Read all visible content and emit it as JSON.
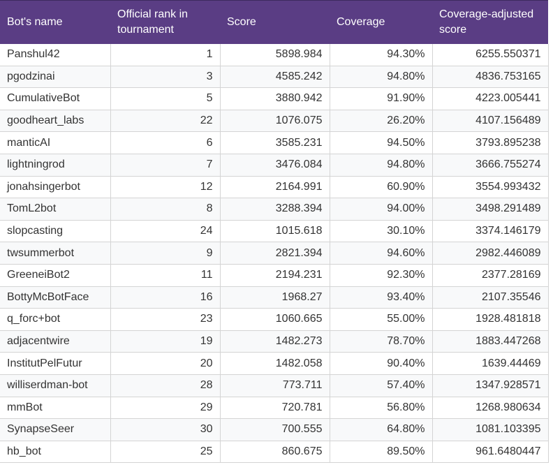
{
  "table": {
    "headers": [
      "Bot's name",
      "Official rank in tournament",
      "Score",
      "Coverage",
      "Coverage-adjusted score"
    ],
    "rows": [
      [
        "Panshul42",
        "1",
        "5898.984",
        "94.30%",
        "6255.550371"
      ],
      [
        "pgodzinai",
        "3",
        "4585.242",
        "94.80%",
        "4836.753165"
      ],
      [
        "CumulativeBot",
        "5",
        "3880.942",
        "91.90%",
        "4223.005441"
      ],
      [
        "goodheart_labs",
        "22",
        "1076.075",
        "26.20%",
        "4107.156489"
      ],
      [
        "manticAI",
        "6",
        "3585.231",
        "94.50%",
        "3793.895238"
      ],
      [
        "lightningrod",
        "7",
        "3476.084",
        "94.80%",
        "3666.755274"
      ],
      [
        "jonahsingerbot",
        "12",
        "2164.991",
        "60.90%",
        "3554.993432"
      ],
      [
        "TomL2bot",
        "8",
        "3288.394",
        "94.00%",
        "3498.291489"
      ],
      [
        "slopcasting",
        "24",
        "1015.618",
        "30.10%",
        "3374.146179"
      ],
      [
        "twsummerbot",
        "9",
        "2821.394",
        "94.60%",
        "2982.446089"
      ],
      [
        "GreeneiBot2",
        "11",
        "2194.231",
        "92.30%",
        "2377.28169"
      ],
      [
        "BottyMcBotFace",
        "16",
        "1968.27",
        "93.40%",
        "2107.35546"
      ],
      [
        "q_forc+bot",
        "23",
        "1060.665",
        "55.00%",
        "1928.481818"
      ],
      [
        "adjacentwire",
        "19",
        "1482.273",
        "78.70%",
        "1883.447268"
      ],
      [
        "InstitutPelFutur",
        "20",
        "1482.058",
        "90.40%",
        "1639.44469"
      ],
      [
        "williserdman-bot",
        "28",
        "773.711",
        "57.40%",
        "1347.928571"
      ],
      [
        "mmBot",
        "29",
        "720.781",
        "56.80%",
        "1268.980634"
      ],
      [
        "SynapseSeer",
        "30",
        "700.555",
        "64.80%",
        "1081.103395"
      ],
      [
        "hb_bot",
        "25",
        "860.675",
        "89.50%",
        "961.6480447"
      ]
    ]
  },
  "colors": {
    "header_bg": "#5a3d84",
    "header_text": "#ffffff",
    "stripe": "#f8f9fa",
    "border": "#d4d4d4"
  }
}
